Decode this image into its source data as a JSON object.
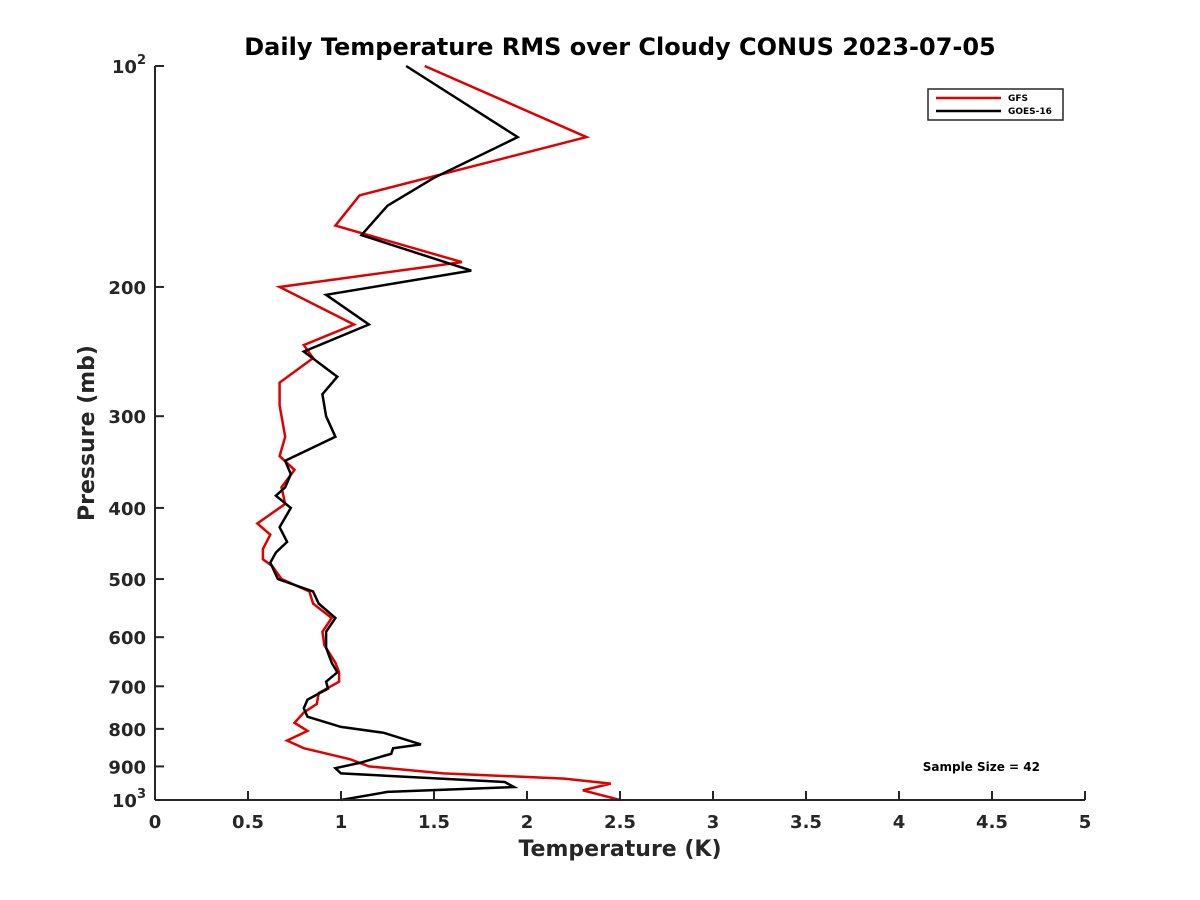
{
  "chart_data": {
    "type": "line",
    "title": "Daily Temperature RMS over Cloudy CONUS 2023-07-05",
    "xlabel": "Temperature (K)",
    "ylabel": "Pressure (mb)",
    "xlim": [
      0,
      5
    ],
    "ylim": [
      1000,
      100
    ],
    "yscale": "log",
    "y_reversed": true,
    "grid": false,
    "legend_position": "top-right",
    "x_ticks": [
      "0",
      "0.5",
      "1",
      "1.5",
      "2",
      "2.5",
      "3",
      "3.5",
      "4",
      "4.5",
      "5"
    ],
    "y_ticks": [
      {
        "value": 100,
        "base": "10",
        "exp": "2"
      },
      {
        "value": 200,
        "label": "200"
      },
      {
        "value": 300,
        "label": "300"
      },
      {
        "value": 400,
        "label": "400"
      },
      {
        "value": 500,
        "label": "500"
      },
      {
        "value": 600,
        "label": "600"
      },
      {
        "value": 700,
        "label": "700"
      },
      {
        "value": 800,
        "label": "800"
      },
      {
        "value": 900,
        "label": "900"
      },
      {
        "value": 1000,
        "base": "10",
        "exp": "3"
      }
    ],
    "annotation": "Sample Size = 42",
    "series": [
      {
        "name": "GFS",
        "color": "#e00000",
        "points": [
          [
            1.45,
            100
          ],
          [
            2.32,
            125
          ],
          [
            1.1,
            150
          ],
          [
            0.97,
            165
          ],
          [
            1.65,
            185
          ],
          [
            0.67,
            200
          ],
          [
            1.07,
            225
          ],
          [
            0.8,
            240
          ],
          [
            0.85,
            250
          ],
          [
            0.67,
            270
          ],
          [
            0.67,
            290
          ],
          [
            0.7,
            320
          ],
          [
            0.67,
            340
          ],
          [
            0.75,
            355
          ],
          [
            0.68,
            375
          ],
          [
            0.7,
            395
          ],
          [
            0.55,
            420
          ],
          [
            0.62,
            435
          ],
          [
            0.58,
            455
          ],
          [
            0.58,
            470
          ],
          [
            0.63,
            480
          ],
          [
            0.68,
            500
          ],
          [
            0.83,
            520
          ],
          [
            0.85,
            540
          ],
          [
            0.95,
            565
          ],
          [
            0.9,
            590
          ],
          [
            0.91,
            615
          ],
          [
            0.97,
            650
          ],
          [
            0.99,
            670
          ],
          [
            0.99,
            690
          ],
          [
            0.88,
            715
          ],
          [
            0.87,
            740
          ],
          [
            0.8,
            760
          ],
          [
            0.75,
            785
          ],
          [
            0.82,
            805
          ],
          [
            0.71,
            830
          ],
          [
            0.8,
            850
          ],
          [
            1.05,
            880
          ],
          [
            1.15,
            900
          ],
          [
            1.55,
            920
          ],
          [
            2.2,
            935
          ],
          [
            2.45,
            950
          ],
          [
            2.3,
            970
          ],
          [
            2.5,
            1000
          ]
        ]
      },
      {
        "name": "GOES-16",
        "color": "#000000",
        "points": [
          [
            1.35,
            100
          ],
          [
            1.95,
            125
          ],
          [
            1.5,
            142
          ],
          [
            1.25,
            155
          ],
          [
            1.11,
            170
          ],
          [
            1.7,
            190
          ],
          [
            0.92,
            205
          ],
          [
            1.15,
            225
          ],
          [
            0.8,
            245
          ],
          [
            0.98,
            265
          ],
          [
            0.9,
            280
          ],
          [
            0.92,
            300
          ],
          [
            0.97,
            320
          ],
          [
            0.7,
            345
          ],
          [
            0.73,
            360
          ],
          [
            0.7,
            375
          ],
          [
            0.65,
            385
          ],
          [
            0.73,
            400
          ],
          [
            0.67,
            425
          ],
          [
            0.71,
            445
          ],
          [
            0.65,
            460
          ],
          [
            0.62,
            475
          ],
          [
            0.66,
            500
          ],
          [
            0.85,
            520
          ],
          [
            0.88,
            540
          ],
          [
            0.97,
            565
          ],
          [
            0.92,
            590
          ],
          [
            0.92,
            620
          ],
          [
            0.95,
            650
          ],
          [
            0.98,
            670
          ],
          [
            0.92,
            690
          ],
          [
            0.93,
            705
          ],
          [
            0.82,
            730
          ],
          [
            0.8,
            750
          ],
          [
            0.82,
            770
          ],
          [
            1.0,
            795
          ],
          [
            1.23,
            810
          ],
          [
            1.43,
            840
          ],
          [
            1.28,
            850
          ],
          [
            1.27,
            865
          ],
          [
            1.1,
            890
          ],
          [
            0.97,
            905
          ],
          [
            1.0,
            920
          ],
          [
            1.88,
            945
          ],
          [
            1.93,
            960
          ],
          [
            1.25,
            975
          ],
          [
            1.0,
            1000
          ]
        ]
      }
    ]
  }
}
